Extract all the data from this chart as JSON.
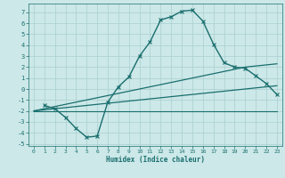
{
  "xlabel": "Humidex (Indice chaleur)",
  "bg_color": "#cce8e8",
  "grid_color": "#aacfcf",
  "line_color": "#1a6e6e",
  "xlim": [
    -0.5,
    23.5
  ],
  "ylim": [
    -5.2,
    7.8
  ],
  "yticks": [
    -5,
    -4,
    -3,
    -2,
    -1,
    0,
    1,
    2,
    3,
    4,
    5,
    6,
    7
  ],
  "xticks": [
    0,
    1,
    2,
    3,
    4,
    5,
    6,
    7,
    8,
    9,
    10,
    11,
    12,
    13,
    14,
    15,
    16,
    17,
    18,
    19,
    20,
    21,
    22,
    23
  ],
  "series": [
    {
      "x": [
        1,
        2,
        3,
        4,
        5,
        6,
        7,
        8,
        9,
        10,
        11,
        12,
        13,
        14,
        15,
        16,
        17,
        18,
        19,
        20,
        21,
        22,
        23
      ],
      "y": [
        -1.5,
        -1.8,
        -2.6,
        -3.6,
        -4.4,
        -4.3,
        -1.2,
        0.2,
        1.1,
        3.0,
        4.3,
        6.3,
        6.6,
        7.1,
        7.2,
        6.2,
        4.1,
        2.4,
        2.0,
        1.9,
        1.2,
        0.5,
        -0.5
      ],
      "marker": "x",
      "lw": 1.0
    },
    {
      "x": [
        0,
        1,
        2,
        3,
        4,
        5,
        6,
        7,
        8,
        9,
        10,
        11,
        12,
        13,
        14,
        15,
        16,
        17,
        18,
        19,
        20,
        21,
        22,
        23
      ],
      "y": [
        -2.0,
        -1.8,
        -1.6,
        -1.4,
        -1.2,
        -1.0,
        -0.8,
        -0.6,
        -0.4,
        -0.2,
        0.0,
        0.2,
        0.4,
        0.6,
        0.8,
        1.0,
        1.2,
        1.4,
        1.6,
        1.8,
        2.0,
        2.1,
        2.2,
        2.3
      ],
      "marker": null,
      "lw": 0.9
    },
    {
      "x": [
        0,
        1,
        2,
        3,
        4,
        5,
        6,
        7,
        8,
        9,
        10,
        11,
        12,
        13,
        14,
        15,
        16,
        17,
        18,
        19,
        20,
        21,
        22,
        23
      ],
      "y": [
        -2.0,
        -1.9,
        -1.8,
        -1.7,
        -1.6,
        -1.5,
        -1.4,
        -1.3,
        -1.2,
        -1.1,
        -1.0,
        -0.9,
        -0.8,
        -0.7,
        -0.6,
        -0.5,
        -0.4,
        -0.3,
        -0.2,
        -0.1,
        0.0,
        0.1,
        0.2,
        0.3
      ],
      "marker": null,
      "lw": 0.9
    },
    {
      "x": [
        0,
        23
      ],
      "y": [
        -2.0,
        -2.0
      ],
      "marker": null,
      "lw": 0.8
    }
  ]
}
